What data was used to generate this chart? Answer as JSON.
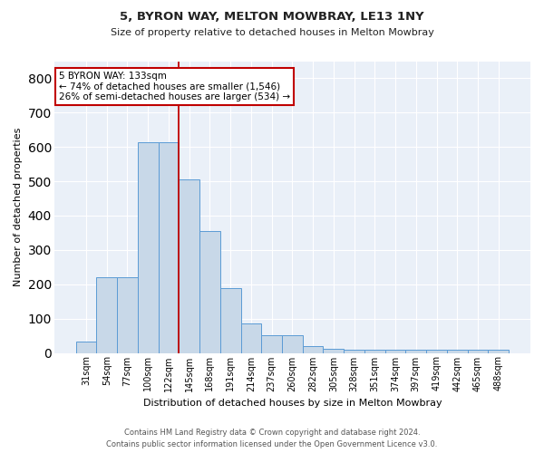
{
  "title1": "5, BYRON WAY, MELTON MOWBRAY, LE13 1NY",
  "title2": "Size of property relative to detached houses in Melton Mowbray",
  "xlabel": "Distribution of detached houses by size in Melton Mowbray",
  "ylabel": "Number of detached properties",
  "footer1": "Contains HM Land Registry data © Crown copyright and database right 2024.",
  "footer2": "Contains public sector information licensed under the Open Government Licence v3.0.",
  "categories": [
    "31sqm",
    "54sqm",
    "77sqm",
    "100sqm",
    "122sqm",
    "145sqm",
    "168sqm",
    "191sqm",
    "214sqm",
    "237sqm",
    "260sqm",
    "282sqm",
    "305sqm",
    "328sqm",
    "351sqm",
    "374sqm",
    "397sqm",
    "419sqm",
    "442sqm",
    "465sqm",
    "488sqm"
  ],
  "values": [
    32,
    220,
    220,
    615,
    615,
    505,
    355,
    188,
    85,
    52,
    52,
    20,
    12,
    8,
    8,
    8,
    8,
    8,
    8,
    8,
    8
  ],
  "bar_color": "#c8d8e8",
  "bar_edge_color": "#5b9bd5",
  "vline_x": 4.5,
  "vline_color": "#c00000",
  "ylim": [
    0,
    850
  ],
  "yticks": [
    0,
    100,
    200,
    300,
    400,
    500,
    600,
    700,
    800
  ],
  "annotation_text": "5 BYRON WAY: 133sqm\n← 74% of detached houses are smaller (1,546)\n26% of semi-detached houses are larger (534) →",
  "annotation_box_color": "#ffffff",
  "annotation_border_color": "#c00000",
  "bg_color": "#eaf0f8",
  "title1_fontsize": 9.5,
  "title2_fontsize": 8,
  "annot_fontsize": 7.5,
  "ylabel_fontsize": 8,
  "xlabel_fontsize": 8,
  "footer_fontsize": 6
}
